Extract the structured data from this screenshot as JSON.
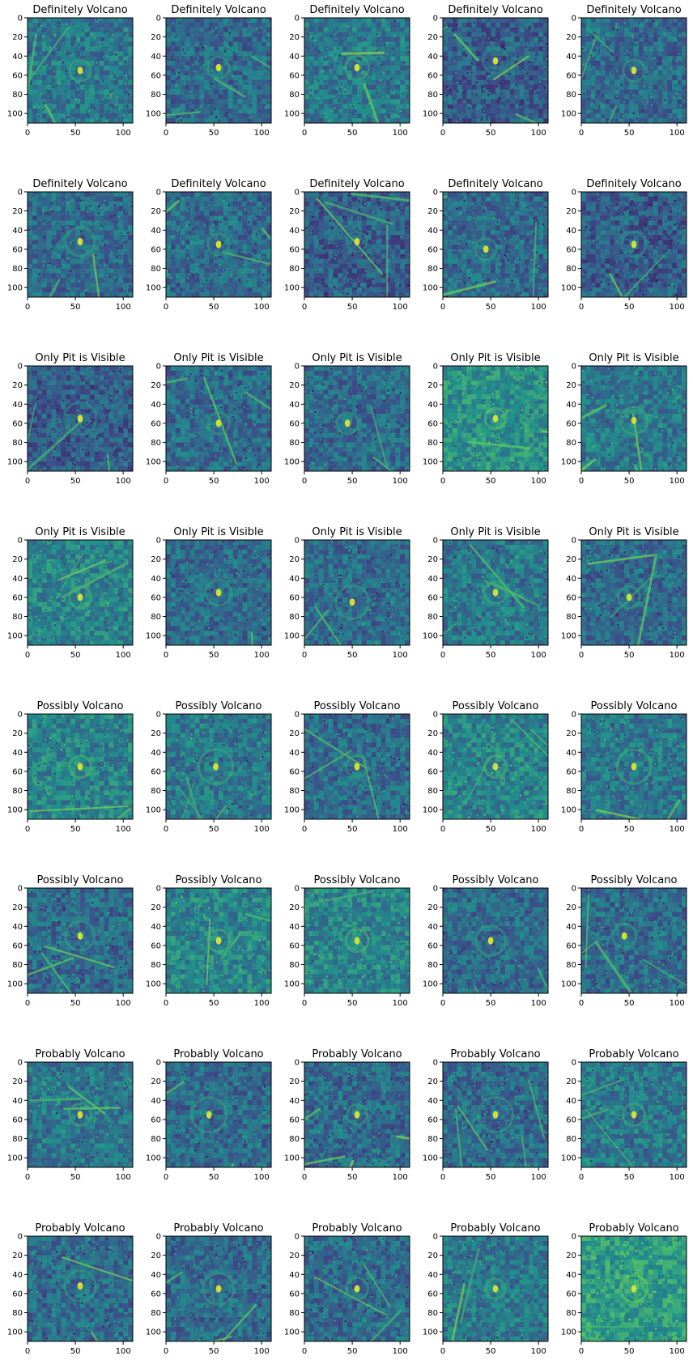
{
  "figure": {
    "rows": 8,
    "cols": 5
  },
  "chart_data": {
    "type": "heatmap",
    "colormap": "viridis",
    "image_size": [
      110,
      110
    ],
    "xlim": [
      0,
      110
    ],
    "ylim": [
      110,
      0
    ],
    "x_ticks": [
      "0",
      "50",
      "100"
    ],
    "y_ticks": [
      "0",
      "20",
      "40",
      "60",
      "80",
      "100"
    ],
    "grid": false,
    "panel_titles": [
      "Definitely Volcano",
      "Definitely Volcano",
      "Definitely Volcano",
      "Definitely Volcano",
      "Definitely Volcano",
      "Definitely Volcano",
      "Definitely Volcano",
      "Definitely Volcano",
      "Definitely Volcano",
      "Definitely Volcano",
      "Only Pit is Visible",
      "Only Pit is Visible",
      "Only Pit is Visible",
      "Only Pit is Visible",
      "Only Pit is Visible",
      "Only Pit is Visible",
      "Only Pit is Visible",
      "Only Pit is Visible",
      "Only Pit is Visible",
      "Only Pit is Visible",
      "Possibly Volcano",
      "Possibly Volcano",
      "Possibly Volcano",
      "Possibly Volcano",
      "Possibly Volcano",
      "Possibly Volcano",
      "Possibly Volcano",
      "Possibly Volcano",
      "Possibly Volcano",
      "Possibly Volcano",
      "Probably Volcano",
      "Probably Volcano",
      "Probably Volcano",
      "Probably Volcano",
      "Probably Volcano",
      "Probably Volcano",
      "Probably Volcano",
      "Probably Volcano",
      "Probably Volcano",
      "Probably Volcano"
    ],
    "feature_centers": [
      [
        55,
        55
      ],
      [
        55,
        52
      ],
      [
        55,
        52
      ],
      [
        55,
        45
      ],
      [
        55,
        55
      ],
      [
        55,
        52
      ],
      [
        55,
        55
      ],
      [
        55,
        52
      ],
      [
        45,
        60
      ],
      [
        55,
        55
      ],
      [
        55,
        55
      ],
      [
        55,
        60
      ],
      [
        45,
        60
      ],
      [
        55,
        55
      ],
      [
        55,
        57
      ],
      [
        55,
        60
      ],
      [
        55,
        55
      ],
      [
        50,
        65
      ],
      [
        55,
        55
      ],
      [
        50,
        60
      ],
      [
        55,
        55
      ],
      [
        52,
        55
      ],
      [
        55,
        55
      ],
      [
        55,
        55
      ],
      [
        55,
        55
      ],
      [
        55,
        50
      ],
      [
        55,
        55
      ],
      [
        55,
        55
      ],
      [
        50,
        55
      ],
      [
        45,
        50
      ],
      [
        55,
        55
      ],
      [
        45,
        55
      ],
      [
        55,
        55
      ],
      [
        55,
        55
      ],
      [
        55,
        55
      ],
      [
        55,
        52
      ],
      [
        55,
        55
      ],
      [
        55,
        55
      ],
      [
        55,
        55
      ],
      [
        55,
        55
      ]
    ],
    "background_levels": [
      0.4,
      0.35,
      0.4,
      0.3,
      0.35,
      0.35,
      0.35,
      0.3,
      0.35,
      0.3,
      0.3,
      0.35,
      0.35,
      0.5,
      0.4,
      0.45,
      0.35,
      0.35,
      0.4,
      0.35,
      0.45,
      0.4,
      0.35,
      0.45,
      0.4,
      0.35,
      0.45,
      0.45,
      0.35,
      0.35,
      0.4,
      0.35,
      0.35,
      0.35,
      0.4,
      0.35,
      0.35,
      0.35,
      0.4,
      0.55
    ],
    "colorscale": [
      "#440154",
      "#3b528b",
      "#21918c",
      "#5ec962",
      "#fde725"
    ]
  }
}
